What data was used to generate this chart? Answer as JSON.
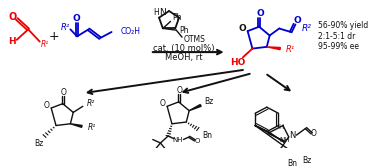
{
  "background": "#ffffff",
  "red": "#ee0000",
  "blue": "#0000cc",
  "black": "#111111",
  "fig_width": 3.78,
  "fig_height": 1.68,
  "dpi": 100,
  "yield_lines": [
    "56-90% yield",
    "2:1-5:1 dr",
    "95-99% ee"
  ]
}
